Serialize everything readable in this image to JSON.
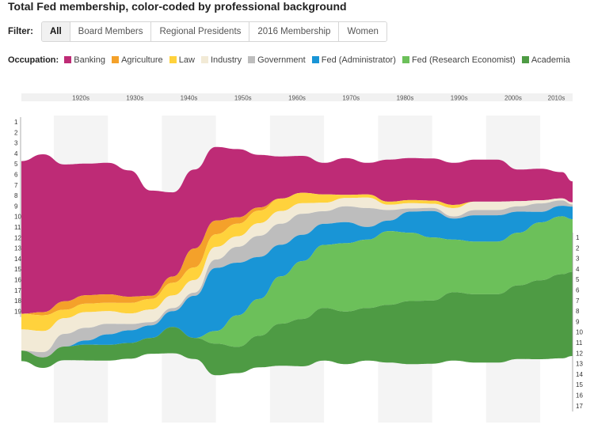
{
  "title": "Total Fed membership, color-coded by professional background",
  "filter": {
    "label": "Filter:",
    "tabs": [
      "All",
      "Board Members",
      "Regional Presidents",
      "2016 Membership",
      "Women"
    ],
    "active": "All"
  },
  "legend": {
    "label": "Occupation:",
    "items": [
      {
        "name": "Banking",
        "color": "#be2b76"
      },
      {
        "name": "Agriculture",
        "color": "#f4a12a"
      },
      {
        "name": "Law",
        "color": "#ffd23c"
      },
      {
        "name": "Industry",
        "color": "#f2ead6"
      },
      {
        "name": "Government",
        "color": "#bdbdbd"
      },
      {
        "name": "Fed (Administrator)",
        "color": "#1995d6"
      },
      {
        "name": "Fed (Research Economist)",
        "color": "#6cc05a"
      },
      {
        "name": "Academia",
        "color": "#4e9b44"
      }
    ]
  },
  "chart_data": {
    "type": "area",
    "stacking": "stacked",
    "x_start": 1914,
    "x_end": 2016,
    "x": [
      1914,
      1918,
      1922,
      1926,
      1930,
      1934,
      1938,
      1942,
      1946,
      1950,
      1954,
      1958,
      1962,
      1966,
      1970,
      1974,
      1978,
      1982,
      1986,
      1990,
      1994,
      1998,
      2002,
      2006,
      2010,
      2014,
      2016
    ],
    "decades": [
      "1920s",
      "1930s",
      "1940s",
      "1950s",
      "1960s",
      "1970s",
      "1980s",
      "1990s",
      "2000s",
      "2010s"
    ],
    "ticks_left": [
      1,
      2,
      3,
      4,
      5,
      6,
      7,
      8,
      9,
      10,
      11,
      12,
      13,
      14,
      15,
      16,
      17,
      18,
      19
    ],
    "ticks_right": [
      1,
      2,
      3,
      4,
      5,
      6,
      7,
      8,
      9,
      10,
      11,
      12,
      13,
      14,
      15,
      16,
      17
    ],
    "series": [
      {
        "name": "Banking",
        "values": [
          14.5,
          15,
          13,
          12.5,
          12.5,
          12,
          10,
          8,
          7.5,
          7,
          6.5,
          5,
          4,
          3.5,
          3,
          3.5,
          3,
          4,
          4,
          4,
          4,
          4,
          4,
          3,
          3,
          2.5,
          2
        ]
      },
      {
        "name": "Agriculture",
        "values": [
          0,
          0.3,
          0.8,
          0.8,
          0.8,
          0.6,
          0.3,
          0.6,
          1.8,
          1.3,
          0.6,
          0.3,
          0,
          0,
          0,
          0,
          0,
          0,
          0,
          0,
          0,
          0,
          0,
          0,
          0,
          0,
          0
        ]
      },
      {
        "name": "Law",
        "values": [
          1.5,
          1.5,
          0.8,
          0.8,
          0.8,
          1,
          1,
          1.2,
          1.2,
          1.2,
          1.2,
          1.2,
          1.2,
          1,
          0.8,
          0.3,
          0.3,
          0.3,
          0.3,
          0.3,
          0.3,
          0,
          0,
          0,
          0,
          0,
          0
        ]
      },
      {
        "name": "Industry",
        "values": [
          2,
          2,
          1.5,
          1.5,
          1.2,
          1,
          1.2,
          1.2,
          1.2,
          1.2,
          1,
          1.2,
          1.2,
          1,
          0.8,
          0.8,
          1,
          0.5,
          0.5,
          0.4,
          0.8,
          0.8,
          0.8,
          0.5,
          0.3,
          0.2,
          0.2
        ]
      },
      {
        "name": "Government",
        "values": [
          0,
          0.5,
          1.2,
          1.2,
          1,
          0.6,
          0.3,
          0.3,
          0.3,
          0.8,
          1.5,
          2,
          2,
          2,
          1.2,
          1.5,
          1.8,
          1,
          0.3,
          0.3,
          0.2,
          0.5,
          0.5,
          0.5,
          0.8,
          0.5,
          0.2
        ]
      },
      {
        "name": "Fed (Administrator)",
        "values": [
          0,
          0,
          0,
          0.4,
          1,
          1.2,
          1.2,
          1.5,
          4,
          6,
          5,
          4,
          3,
          2.5,
          2,
          2,
          1.2,
          1,
          2,
          2.5,
          2,
          2.5,
          2.5,
          2,
          1,
          1,
          1.2
        ]
      },
      {
        "name": "Fed (Research Economist)",
        "values": [
          0,
          0,
          0,
          0,
          0,
          0,
          0,
          0,
          0,
          1.2,
          3,
          3.5,
          4.5,
          5.5,
          6,
          6.5,
          6.5,
          7,
          6.5,
          6,
          5,
          5,
          5,
          5,
          5.5,
          5.5,
          5
        ]
      },
      {
        "name": "Academia",
        "values": [
          1,
          1,
          1.3,
          1.5,
          1.5,
          1.5,
          1.5,
          2.5,
          2,
          3,
          2.5,
          3,
          4,
          4.5,
          5,
          5,
          5,
          5.5,
          6,
          6,
          6.5,
          6.5,
          6.5,
          7,
          7.5,
          8,
          8
        ]
      }
    ]
  }
}
